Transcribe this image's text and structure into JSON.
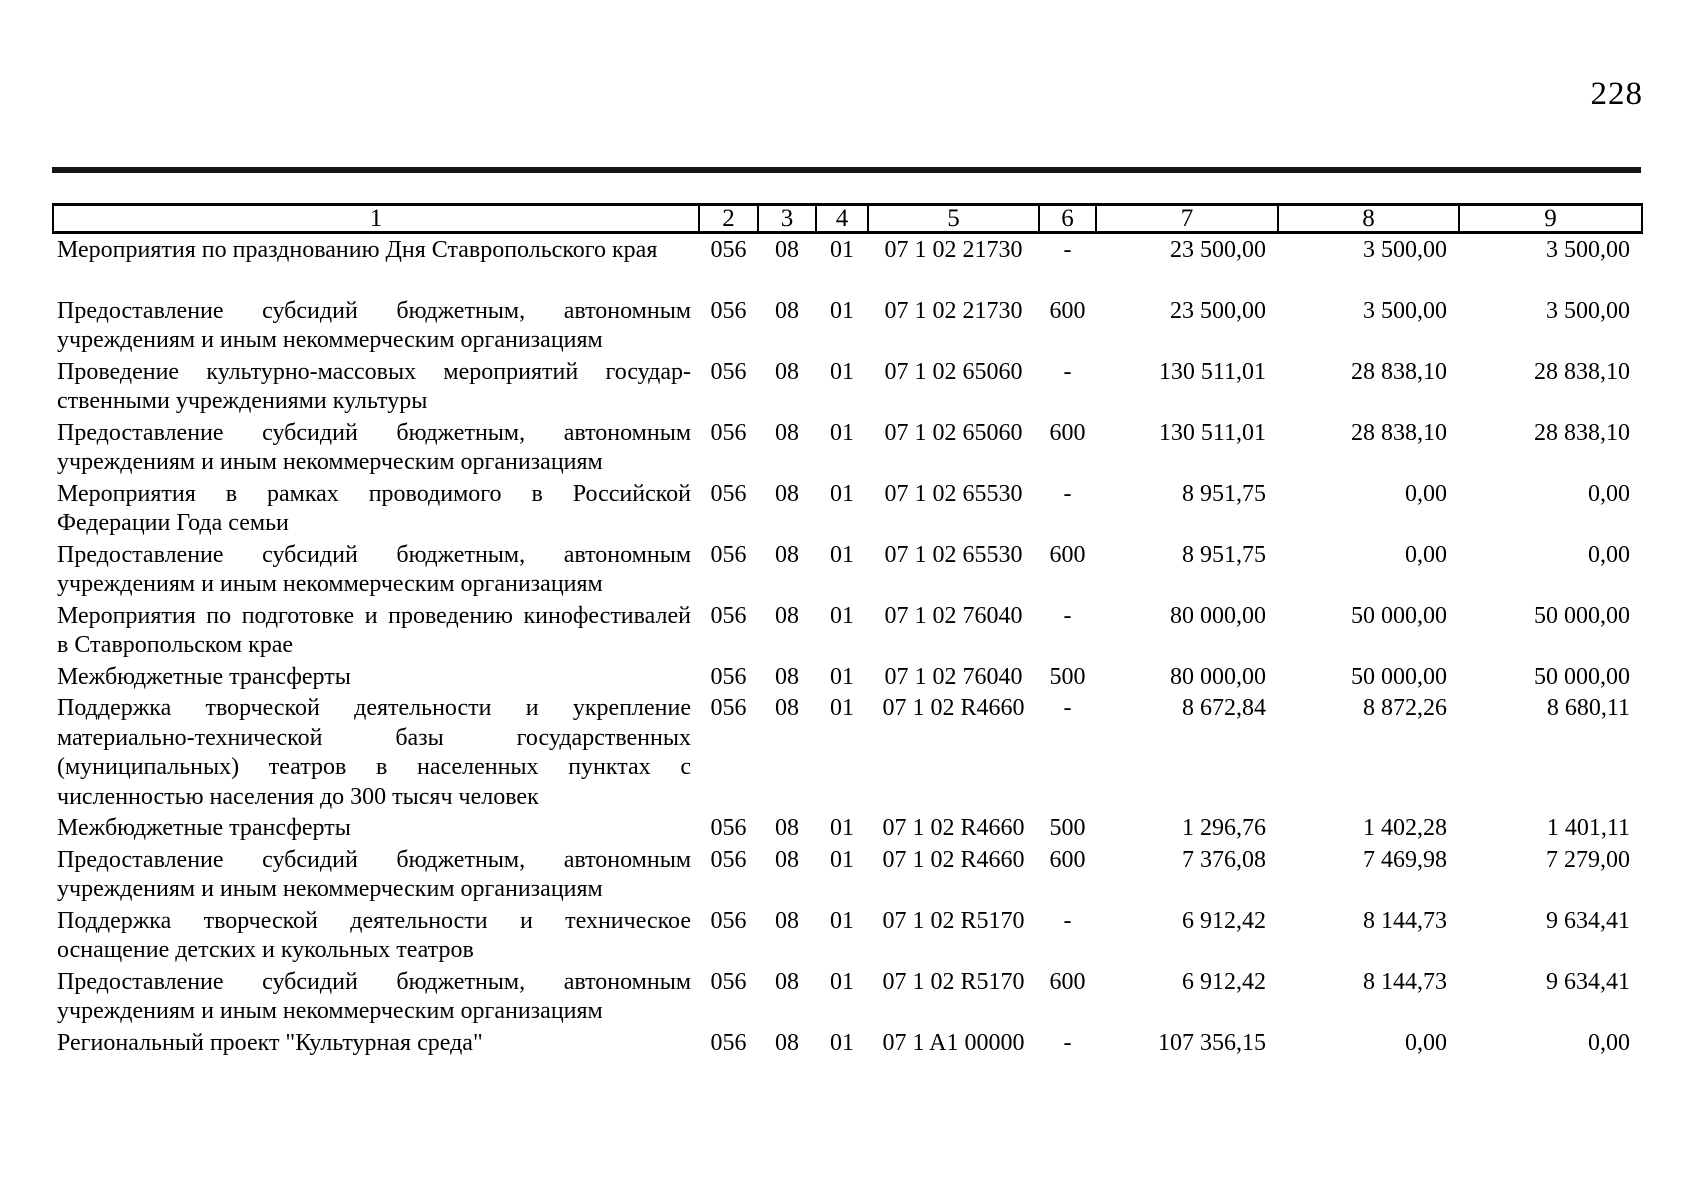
{
  "page": {
    "number": "228"
  },
  "table": {
    "columns": [
      "1",
      "2",
      "3",
      "4",
      "5",
      "6",
      "7",
      "8",
      "9"
    ],
    "rows": [
      {
        "desc_lines": [
          "Мероприятия по празднованию Дня Ставропольского края"
        ],
        "values": [
          "056",
          "08",
          "01",
          "07 1 02 21730",
          "-",
          "23 500,00",
          "3 500,00",
          "3 500,00"
        ]
      },
      {
        "desc_lines": [
          "Предоставление субсидий бюджетным, автономным",
          "учреждениям и иным некоммерческим организациям"
        ],
        "values": [
          "056",
          "08",
          "01",
          "07 1 02 21730",
          "600",
          "23 500,00",
          "3 500,00",
          "3 500,00"
        ]
      },
      {
        "desc_lines": [
          "Проведение культурно-массовых мероприятий государ-",
          "ственными учреждениями культуры"
        ],
        "values": [
          "056",
          "08",
          "01",
          "07 1 02 65060",
          "-",
          "130 511,01",
          "28 838,10",
          "28 838,10"
        ]
      },
      {
        "desc_lines": [
          "Предоставление субсидий бюджетным, автономным",
          "учреждениям и иным некоммерческим организациям"
        ],
        "values": [
          "056",
          "08",
          "01",
          "07 1 02 65060",
          "600",
          "130 511,01",
          "28 838,10",
          "28 838,10"
        ]
      },
      {
        "desc_lines": [
          "Мероприятия в рамках проводимого в Российской",
          "Федерации Года семьи"
        ],
        "values": [
          "056",
          "08",
          "01",
          "07 1 02 65530",
          "-",
          "8 951,75",
          "0,00",
          "0,00"
        ]
      },
      {
        "desc_lines": [
          "Предоставление субсидий бюджетным, автономным",
          "учреждениям и иным некоммерческим организациям"
        ],
        "values": [
          "056",
          "08",
          "01",
          "07 1 02 65530",
          "600",
          "8 951,75",
          "0,00",
          "0,00"
        ]
      },
      {
        "desc_lines": [
          "Мероприятия по подготовке и проведению кинофестивалей",
          "в Ставропольском крае"
        ],
        "values": [
          "056",
          "08",
          "01",
          "07 1 02 76040",
          "-",
          "80 000,00",
          "50 000,00",
          "50 000,00"
        ]
      },
      {
        "desc_lines": [
          "Межбюджетные трансферты"
        ],
        "values": [
          "056",
          "08",
          "01",
          "07 1 02 76040",
          "500",
          "80 000,00",
          "50 000,00",
          "50 000,00"
        ]
      },
      {
        "desc_lines": [
          "Поддержка творческой деятельности и укрепление",
          "материально-технической базы государственных",
          "(муниципальных) театров в населенных пунктах с",
          "численностью населения до 300 тысяч человек"
        ],
        "values": [
          "056",
          "08",
          "01",
          "07 1 02 R4660",
          "-",
          "8 672,84",
          "8 872,26",
          "8 680,11"
        ]
      },
      {
        "desc_lines": [
          "Межбюджетные трансферты"
        ],
        "values": [
          "056",
          "08",
          "01",
          "07 1 02 R4660",
          "500",
          "1 296,76",
          "1 402,28",
          "1 401,11"
        ]
      },
      {
        "desc_lines": [
          "Предоставление субсидий бюджетным, автономным",
          "учреждениям и иным некоммерческим организациям"
        ],
        "values": [
          "056",
          "08",
          "01",
          "07 1 02 R4660",
          "600",
          "7 376,08",
          "7 469,98",
          "7 279,00"
        ]
      },
      {
        "desc_lines": [
          "Поддержка творческой деятельности и техническое",
          "оснащение детских и кукольных театров"
        ],
        "values": [
          "056",
          "08",
          "01",
          "07 1 02 R5170",
          "-",
          "6 912,42",
          "8 144,73",
          "9 634,41"
        ]
      },
      {
        "desc_lines": [
          "Предоставление субсидий бюджетным, автономным",
          "учреждениям и иным некоммерческим организациям"
        ],
        "values": [
          "056",
          "08",
          "01",
          "07 1 02 R5170",
          "600",
          "6 912,42",
          "8 144,73",
          "9 634,41"
        ]
      },
      {
        "desc_lines": [
          "Региональный проект \"Культурная среда\""
        ],
        "values": [
          "056",
          "08",
          "01",
          "07 1 A1 00000",
          "-",
          "107 356,15",
          "0,00",
          "0,00"
        ]
      }
    ]
  }
}
